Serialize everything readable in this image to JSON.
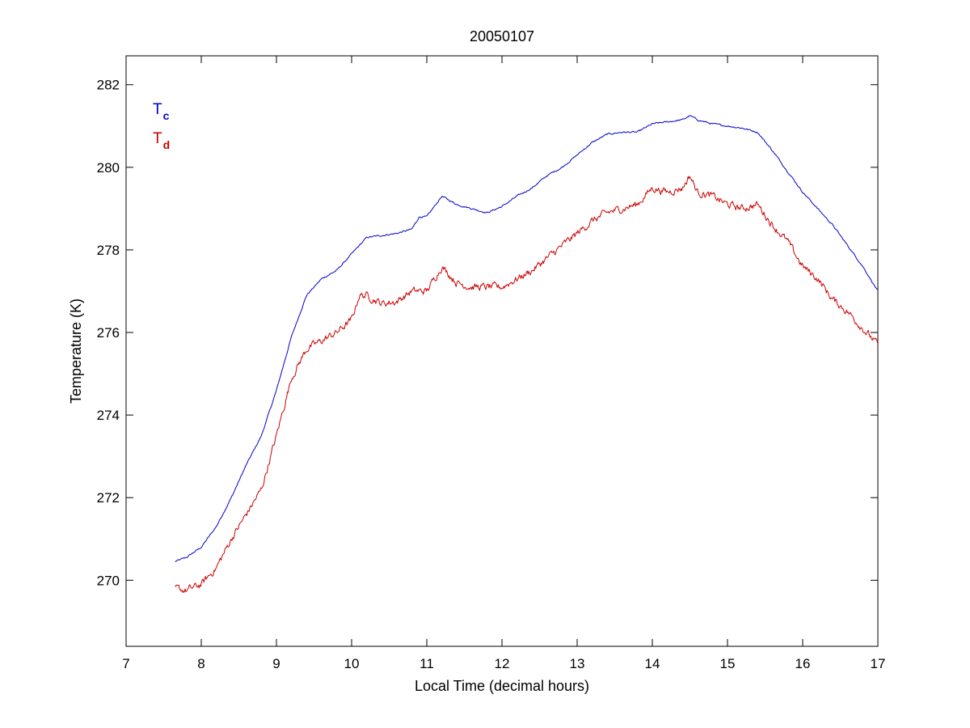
{
  "chart_data": {
    "type": "line",
    "title": "20050107",
    "xlabel": "Local Time (decimal hours)",
    "ylabel": "Temperature (K)",
    "xlim": [
      7,
      17
    ],
    "ylim": [
      268.4,
      282.7
    ],
    "xticks": [
      7,
      8,
      9,
      10,
      11,
      12,
      13,
      14,
      15,
      16,
      17
    ],
    "yticks": [
      270,
      272,
      274,
      276,
      278,
      280,
      282
    ],
    "legend_position": "top-left",
    "series": [
      {
        "name": "T",
        "subscript": "c",
        "color": "#0000cc",
        "noise": 0.04,
        "x": [
          7.65,
          7.8,
          8.0,
          8.2,
          8.4,
          8.6,
          8.8,
          9.0,
          9.2,
          9.4,
          9.6,
          9.8,
          10.0,
          10.2,
          10.4,
          10.6,
          10.8,
          10.9,
          11.0,
          11.2,
          11.4,
          11.6,
          11.8,
          12.0,
          12.2,
          12.4,
          12.6,
          12.8,
          13.0,
          13.2,
          13.4,
          13.6,
          13.8,
          14.0,
          14.2,
          14.4,
          14.5,
          14.6,
          14.8,
          15.0,
          15.2,
          15.4,
          15.6,
          15.8,
          16.0,
          16.2,
          16.4,
          16.6,
          16.8,
          17.0
        ],
        "y": [
          270.45,
          270.55,
          270.8,
          271.3,
          272.0,
          272.8,
          273.5,
          274.6,
          275.9,
          276.9,
          277.3,
          277.5,
          277.9,
          278.3,
          278.35,
          278.4,
          278.5,
          278.8,
          278.8,
          279.3,
          279.1,
          279.0,
          278.9,
          279.05,
          279.3,
          279.5,
          279.8,
          280.0,
          280.3,
          280.6,
          280.8,
          280.85,
          280.85,
          281.05,
          281.1,
          281.15,
          281.25,
          281.15,
          281.05,
          281.0,
          280.95,
          280.85,
          280.4,
          279.9,
          279.4,
          279.0,
          278.6,
          278.1,
          277.6,
          277.0
        ]
      },
      {
        "name": "T",
        "subscript": "d",
        "color": "#cc0000",
        "noise": 0.18,
        "x": [
          7.65,
          7.8,
          8.0,
          8.2,
          8.4,
          8.6,
          8.8,
          9.0,
          9.2,
          9.4,
          9.6,
          9.8,
          10.0,
          10.1,
          10.2,
          10.4,
          10.6,
          10.8,
          11.0,
          11.2,
          11.4,
          11.6,
          11.8,
          12.0,
          12.2,
          12.4,
          12.6,
          12.8,
          13.0,
          13.2,
          13.4,
          13.6,
          13.8,
          14.0,
          14.2,
          14.4,
          14.5,
          14.6,
          14.8,
          15.0,
          15.2,
          15.4,
          15.6,
          15.8,
          16.0,
          16.2,
          16.4,
          16.6,
          16.8,
          17.0
        ],
        "y": [
          269.8,
          269.75,
          269.9,
          270.3,
          271.0,
          271.6,
          272.2,
          273.5,
          274.9,
          275.6,
          275.8,
          276.0,
          276.3,
          276.9,
          276.9,
          276.7,
          276.75,
          277.0,
          277.0,
          277.6,
          277.2,
          277.1,
          277.1,
          277.1,
          277.3,
          277.5,
          277.8,
          278.1,
          278.4,
          278.7,
          278.9,
          279.0,
          279.1,
          279.5,
          279.4,
          279.5,
          279.8,
          279.4,
          279.3,
          279.1,
          279.0,
          279.1,
          278.6,
          278.2,
          277.6,
          277.3,
          276.8,
          276.5,
          276.1,
          275.7
        ]
      }
    ]
  }
}
